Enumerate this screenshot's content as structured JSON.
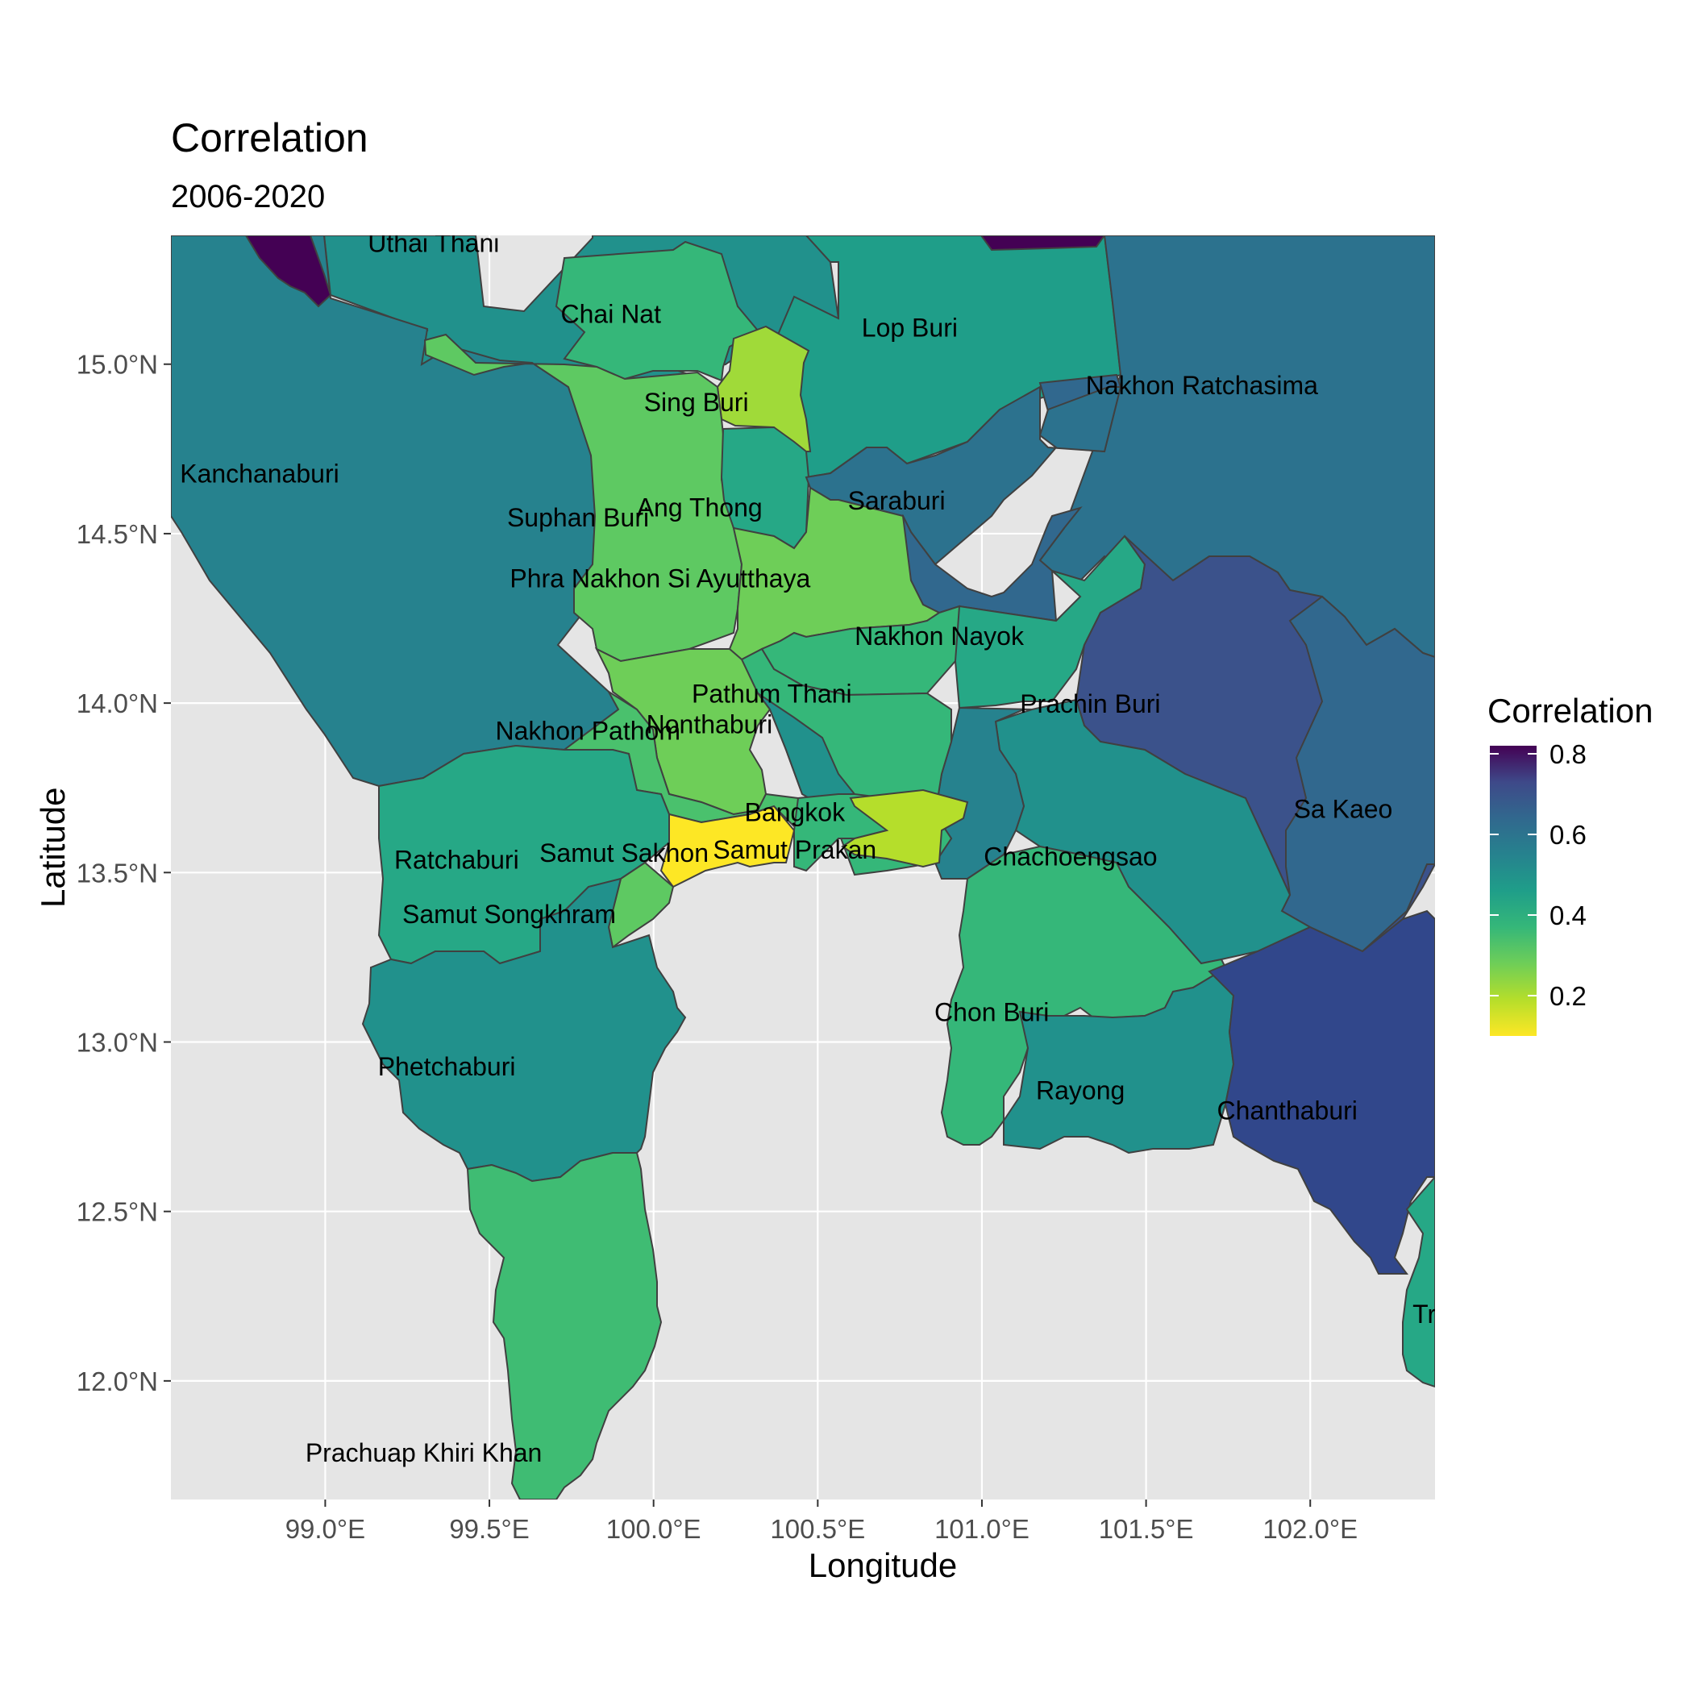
{
  "title": "Correlation",
  "subtitle": "2006-2020",
  "x_axis_label": "Longitude",
  "y_axis_label": "Latitude",
  "legend": {
    "title": "Correlation",
    "ticks": [
      "0.8",
      "0.6",
      "0.4",
      "0.2"
    ],
    "tick_values": [
      0.8,
      0.6,
      0.4,
      0.2
    ],
    "range": [
      0.1,
      0.82
    ],
    "colormap": "viridis (reversed)"
  },
  "x_ticks": [
    "99.0°E",
    "99.5°E",
    "100.0°E",
    "100.5°E",
    "101.0°E",
    "101.5°E",
    "102.0°E"
  ],
  "x_tick_values": [
    99.0,
    99.5,
    100.0,
    100.5,
    101.0,
    101.5,
    102.0
  ],
  "y_ticks": [
    "15.0°N",
    "14.5°N",
    "14.0°N",
    "13.5°N",
    "13.0°N",
    "12.5°N",
    "12.0°N"
  ],
  "y_tick_values": [
    15.0,
    14.5,
    14.0,
    13.5,
    13.0,
    12.5,
    12.0
  ],
  "map_extent": {
    "lon": [
      98.53,
      102.38
    ],
    "lat": [
      11.65,
      15.38
    ]
  },
  "colors": {
    "panel_background": "#e5e5e5",
    "grid": "#ffffff",
    "border": "#3f3f3f"
  },
  "provinces": [
    {
      "name": "Uthai Thani",
      "value": 0.4,
      "label_lon": 99.33,
      "label_lat": 15.36
    },
    {
      "name": "Chai Nat",
      "value": 0.37,
      "label_lon": 99.87,
      "label_lat": 15.15
    },
    {
      "name": "Lop Buri",
      "value": 0.42,
      "label_lon": 100.78,
      "label_lat": 15.11
    },
    {
      "name": "Sing Buri",
      "value": 0.21,
      "label_lon": 100.13,
      "label_lat": 14.89
    },
    {
      "name": "Nakhon Ratchasima",
      "value": 0.56,
      "label_lon": 101.67,
      "label_lat": 14.94
    },
    {
      "name": "Kanchanaburi",
      "value": 0.5,
      "label_lon": 98.8,
      "label_lat": 14.68
    },
    {
      "name": "Saraburi",
      "value": 0.56,
      "label_lon": 100.74,
      "label_lat": 14.6
    },
    {
      "name": "Ang Thong",
      "value": 0.46,
      "label_lon": 100.14,
      "label_lat": 14.58
    },
    {
      "name": "Suphan Buri",
      "value": 0.29,
      "label_lon": 99.77,
      "label_lat": 14.55
    },
    {
      "name": "Phra Nakhon Si Ayutthaya",
      "value": 0.26,
      "label_lon": 100.02,
      "label_lat": 14.37
    },
    {
      "name": "Nakhon Nayok",
      "value": 0.36,
      "label_lon": 100.87,
      "label_lat": 14.2
    },
    {
      "name": "Pathum Thani",
      "value": 0.33,
      "label_lon": 100.36,
      "label_lat": 14.03
    },
    {
      "name": "Prachin Buri",
      "value": 0.48,
      "label_lon": 101.33,
      "label_lat": 14.0
    },
    {
      "name": "Nonthaburi",
      "value": 0.43,
      "label_lon": 100.17,
      "label_lat": 13.94
    },
    {
      "name": "Nakhon Pathom",
      "value": 0.31,
      "label_lon": 99.8,
      "label_lat": 13.92
    },
    {
      "name": "Bangkok",
      "value": 0.38,
      "label_lon": 100.43,
      "label_lat": 13.68
    },
    {
      "name": "Sa Kaeo",
      "value": 0.58,
      "label_lon": 102.1,
      "label_lat": 13.69
    },
    {
      "name": "Samut Sakhon",
      "value": 0.12,
      "label_lon": 99.91,
      "label_lat": 13.56
    },
    {
      "name": "Samut Prakan",
      "value": 0.36,
      "label_lon": 100.43,
      "label_lat": 13.57
    },
    {
      "name": "Chachoengsao",
      "value": 0.47,
      "label_lon": 101.27,
      "label_lat": 13.55
    },
    {
      "name": "Ratchaburi",
      "value": 0.37,
      "label_lon": 99.4,
      "label_lat": 13.54
    },
    {
      "name": "Samut Songkhram",
      "value": 0.29,
      "label_lon": 99.56,
      "label_lat": 13.38
    },
    {
      "name": "Chon Buri",
      "value": 0.36,
      "label_lon": 101.03,
      "label_lat": 13.09
    },
    {
      "name": "Phetchaburi",
      "value": 0.42,
      "label_lon": 99.37,
      "label_lat": 12.93
    },
    {
      "name": "Rayong",
      "value": 0.44,
      "label_lon": 101.3,
      "label_lat": 12.86
    },
    {
      "name": "Chanthaburi",
      "value": 0.62,
      "label_lon": 101.93,
      "label_lat": 12.8
    },
    {
      "name": "Trat",
      "value": 0.42,
      "label_lon": 102.38,
      "label_lat": 12.2
    },
    {
      "name": "Prachuap Khiri Khan",
      "value": 0.32,
      "label_lon": 99.3,
      "label_lat": 11.79
    }
  ],
  "unlabeled_regions": [
    {
      "value": 0.51
    },
    {
      "value": 0.17
    },
    {
      "value": 0.77
    },
    {
      "value": 0.72
    }
  ]
}
